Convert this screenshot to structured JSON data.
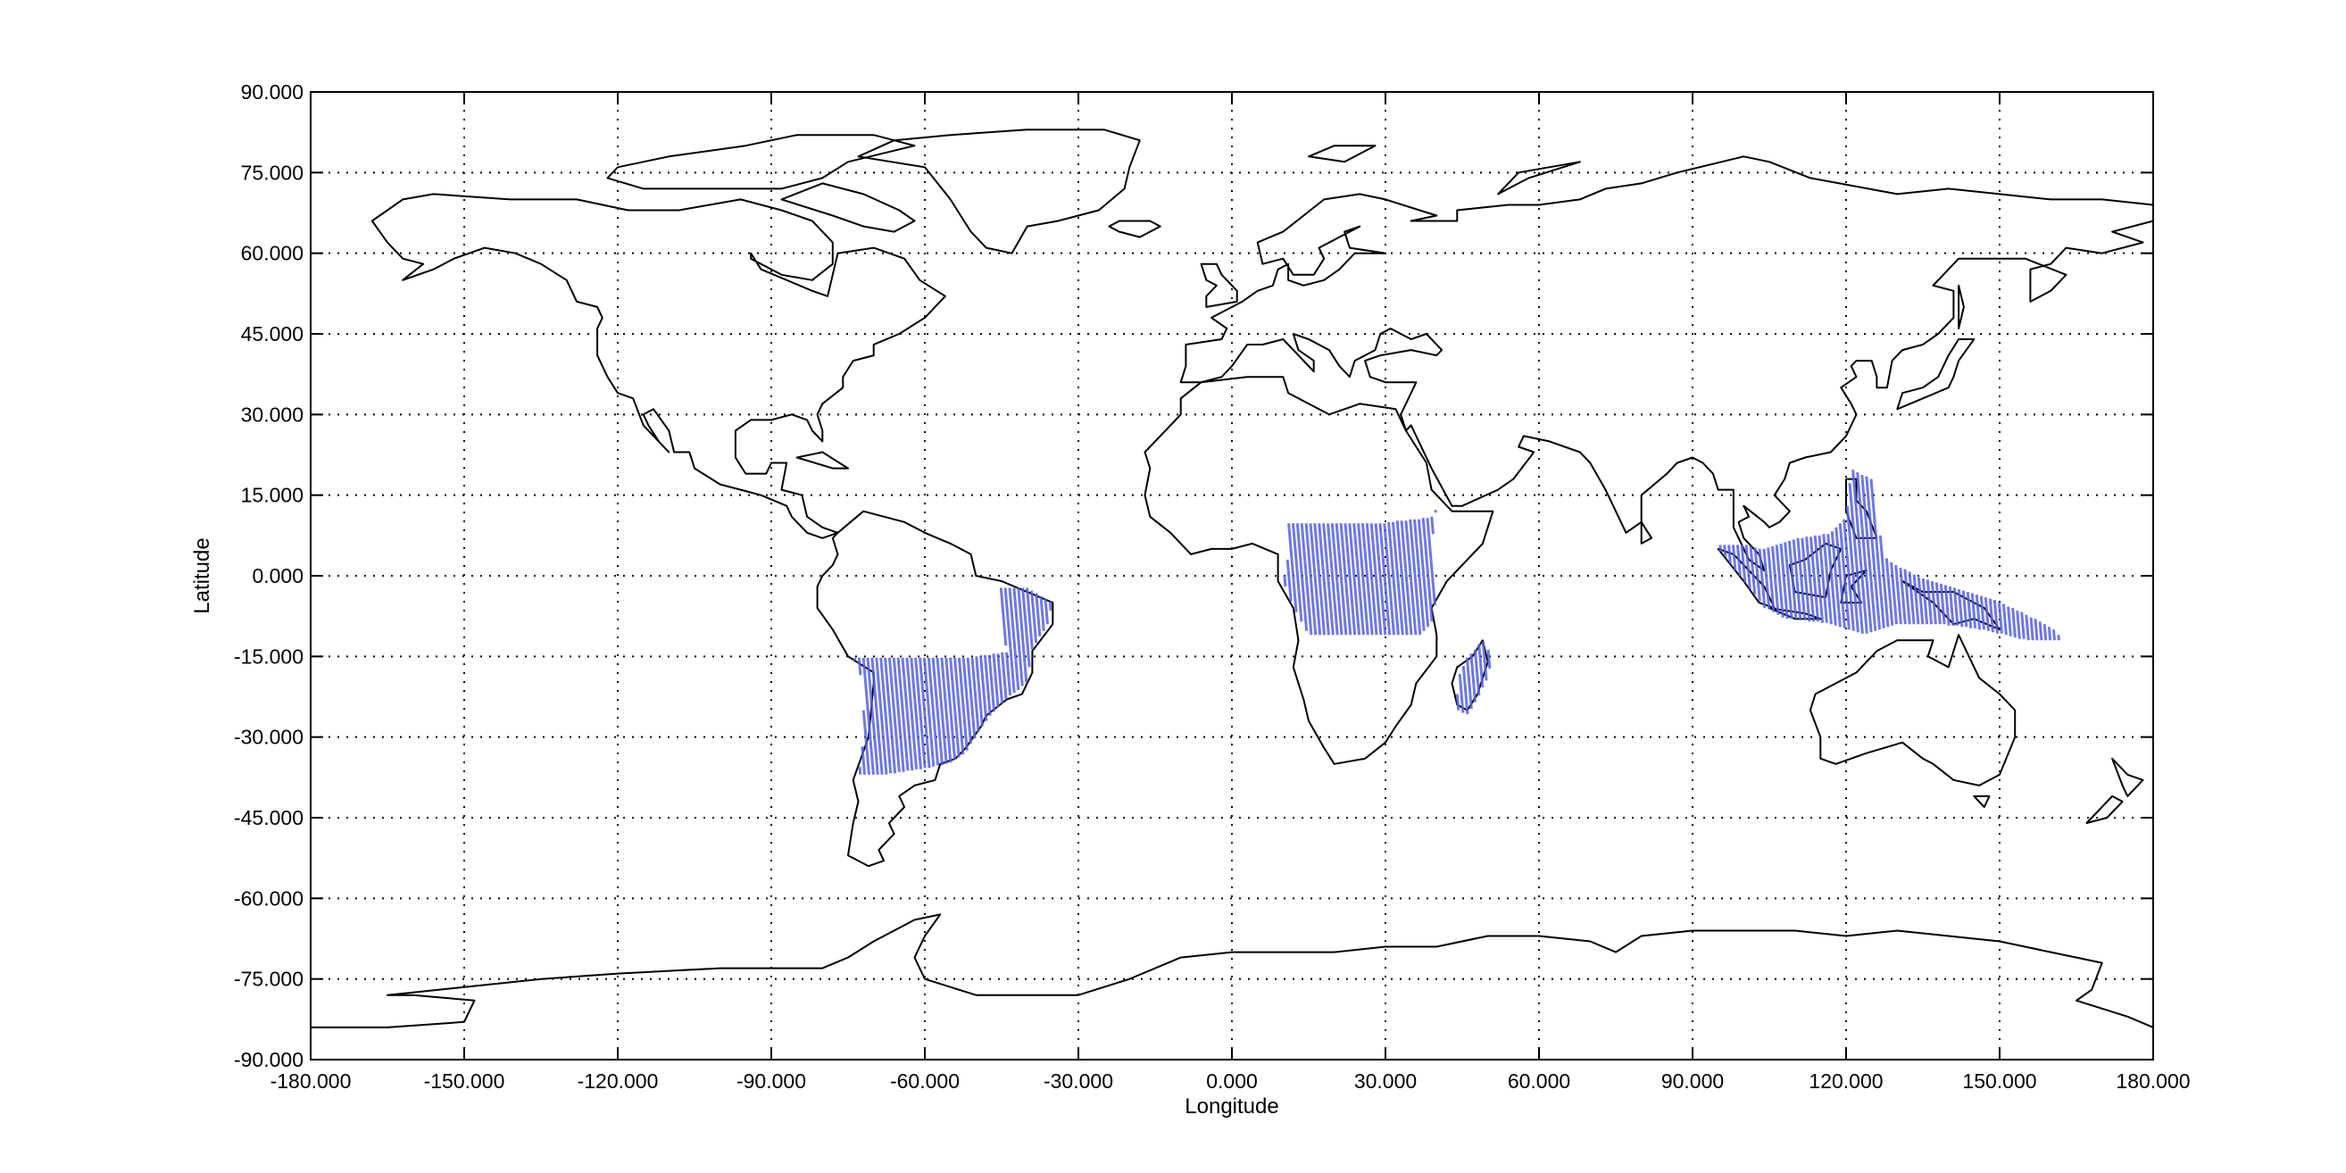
{
  "map": {
    "xlabel": "Longitude",
    "ylabel": "Latitude",
    "x_ticks": [
      "-180.000",
      "-150.000",
      "-120.000",
      "-90.000",
      "-60.000",
      "-30.000",
      "0.000",
      "30.000",
      "60.000",
      "90.000",
      "120.000",
      "150.000",
      "180.000"
    ],
    "y_ticks": [
      "90.000",
      "75.000",
      "60.000",
      "45.000",
      "30.000",
      "15.000",
      "0.000",
      "-15.000",
      "-30.000",
      "-45.000",
      "-60.000",
      "-75.000",
      "-90.000"
    ],
    "xlim": [
      -180,
      180
    ],
    "ylim": [
      -90,
      90
    ],
    "grid": true,
    "swath_color": "#5560e6",
    "coastline_color": "#000000"
  },
  "chart_data": {
    "type": "scatter",
    "title": "",
    "xlabel": "Longitude",
    "ylabel": "Latitude",
    "xlim": [
      -180,
      180
    ],
    "ylim": [
      -90,
      90
    ],
    "grid": true,
    "regions": [
      {
        "area": "South America",
        "lon_range": [
          -74,
          -35
        ],
        "lat_range": [
          -37,
          -2
        ]
      },
      {
        "area": "Central Africa",
        "lon_range": [
          11,
          40
        ],
        "lat_range": [
          -11,
          13
        ]
      },
      {
        "area": "Madagascar",
        "lon_range": [
          43,
          51
        ],
        "lat_range": [
          -26,
          -12
        ]
      },
      {
        "area": "Maritime Southeast Asia",
        "lon_range": [
          95,
          162
        ],
        "lat_range": [
          -12,
          21
        ]
      }
    ]
  }
}
